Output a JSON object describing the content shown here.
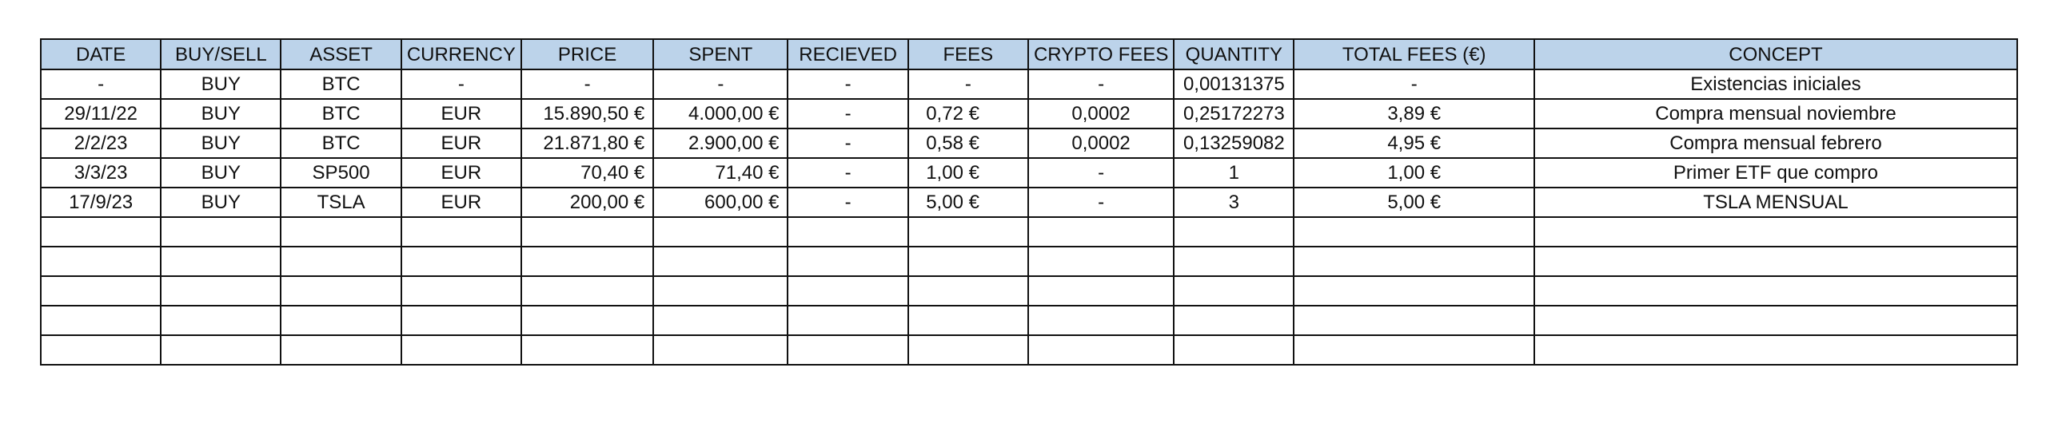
{
  "columns": [
    "DATE",
    "BUY/SELL",
    "ASSET",
    "CURRENCY",
    "PRICE",
    "SPENT",
    "RECIEVED",
    "FEES",
    "CRYPTO FEES",
    "QUANTITY",
    "TOTAL FEES (€)",
    "CONCEPT"
  ],
  "rows": [
    [
      "-",
      "BUY",
      "BTC",
      "-",
      "-",
      "-",
      "-",
      "-",
      "-",
      "0,00131375",
      "-",
      "Existencias iniciales"
    ],
    [
      "29/11/22",
      "BUY",
      "BTC",
      "EUR",
      "15.890,50 €",
      "4.000,00 €",
      "-",
      "0,72 €",
      "0,0002",
      "0,25172273",
      "3,89 €",
      "Compra mensual noviembre"
    ],
    [
      "2/2/23",
      "BUY",
      "BTC",
      "EUR",
      "21.871,80 €",
      "2.900,00 €",
      "-",
      "0,58 €",
      "0,0002",
      "0,13259082",
      "4,95 €",
      "Compra mensual febrero"
    ],
    [
      "3/3/23",
      "BUY",
      "SP500",
      "EUR",
      "70,40 €",
      "71,40 €",
      "-",
      "1,00 €",
      "-",
      "1",
      "1,00 €",
      "Primer ETF que compro"
    ],
    [
      "17/9/23",
      "BUY",
      "TSLA",
      "EUR",
      "200,00 €",
      "600,00 €",
      "-",
      "5,00 €",
      "-",
      "3",
      "5,00 €",
      "TSLA MENSUAL"
    ]
  ],
  "colors": {
    "header_fill": "#bcd3ea",
    "border": "#111111"
  }
}
